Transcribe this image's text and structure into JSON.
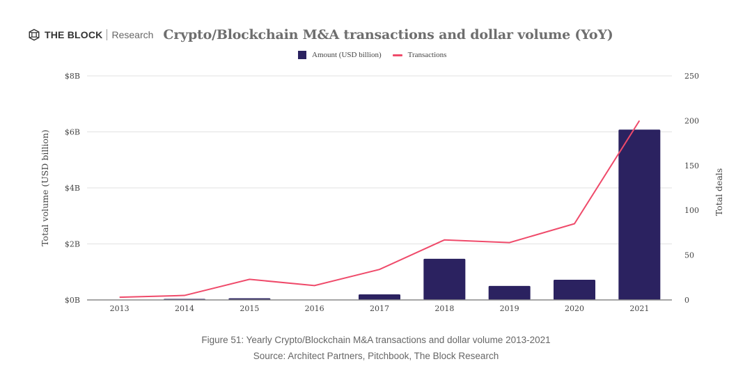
{
  "header": {
    "brand": "THE BLOCK",
    "brand_sub": "Research",
    "logo_icon": "the-block-cube-icon"
  },
  "legend": {
    "bar_label": "Amount (USD billion)",
    "line_label": "Transactions"
  },
  "colors": {
    "bar": "#2b2260",
    "line": "#ef4a6a",
    "grid": "#e2e2e2",
    "axis": "#888888",
    "tick_text": "#444444"
  },
  "chart_data": {
    "type": "bar",
    "title": "Crypto/Blockchain M&A transactions and dollar volume (YoY)",
    "categories": [
      "2013",
      "2014",
      "2015",
      "2016",
      "2017",
      "2018",
      "2019",
      "2020",
      "2021"
    ],
    "series": [
      {
        "name": "Amount (USD billion)",
        "type": "bar",
        "axis": "left",
        "values": [
          0.0,
          0.03,
          0.06,
          0.0,
          0.2,
          1.47,
          0.5,
          0.72,
          6.08
        ]
      },
      {
        "name": "Transactions",
        "type": "line",
        "axis": "right",
        "values": [
          3,
          5,
          23,
          16,
          34,
          67,
          64,
          85,
          200
        ]
      }
    ],
    "xlabel": "",
    "ylabel": "Total volume (USD billion)",
    "y2label": "Total deals",
    "ylim": [
      0,
      8
    ],
    "y2lim": [
      0,
      250
    ],
    "yticks": [
      "$0B",
      "$2B",
      "$4B",
      "$6B",
      "$8B"
    ],
    "ytick_values": [
      0,
      2,
      4,
      6,
      8
    ],
    "y2ticks": [
      "0",
      "50",
      "100",
      "150",
      "200",
      "250"
    ],
    "y2tick_values": [
      0,
      50,
      100,
      150,
      200,
      250
    ],
    "grid": true,
    "legend_position": "top-center"
  },
  "caption": {
    "figure": "Figure 51: Yearly Crypto/Blockchain M&A transactions and dollar volume 2013-2021",
    "source": "Source: Architect Partners, Pitchbook, The Block Research"
  }
}
